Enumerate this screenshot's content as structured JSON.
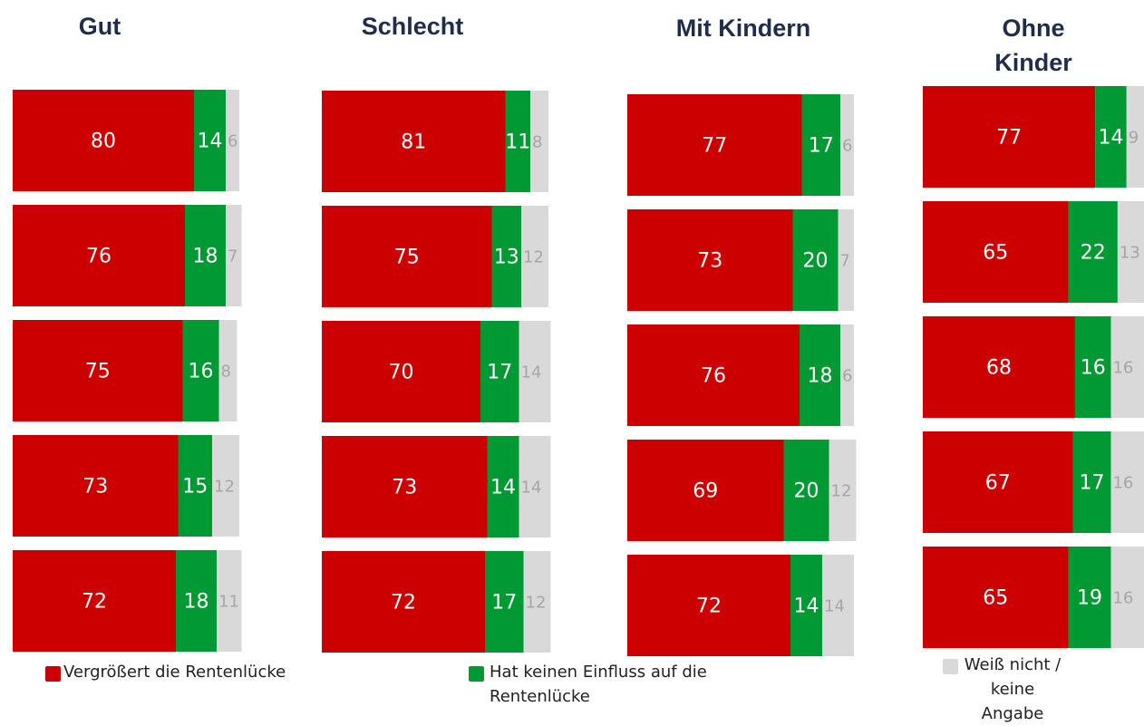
{
  "chart_data": {
    "type": "bar",
    "orientation": "horizontal",
    "stacked": true,
    "titles": [
      "Gut",
      "Schlecht",
      "Mit Kindern",
      "Ohne Kinder"
    ],
    "categories": [
      null,
      null,
      null,
      null,
      null
    ],
    "series": [
      {
        "name": "Vergrößert die Rentenlücke",
        "color": "#cc0000",
        "label_color": "#ffffff",
        "values": [
          [
            80,
            76,
            75,
            73,
            72
          ],
          [
            81,
            75,
            70,
            73,
            72
          ],
          [
            77,
            73,
            76,
            69,
            72
          ],
          [
            77,
            65,
            68,
            67,
            65
          ]
        ]
      },
      {
        "name": "Hat keinen Einfluss auf die Rentenlücke",
        "color": "#009933",
        "label_color": "#ffffff",
        "values": [
          [
            14,
            18,
            16,
            15,
            18
          ],
          [
            11,
            13,
            17,
            14,
            17
          ],
          [
            17,
            20,
            18,
            20,
            14
          ],
          [
            14,
            22,
            16,
            17,
            19
          ]
        ]
      },
      {
        "name": "Weiß nicht / keine Angabe",
        "color": "#d9d9d9",
        "label_color": "#a6a6a6",
        "values": [
          [
            6,
            7,
            8,
            12,
            11
          ],
          [
            8,
            12,
            14,
            14,
            12
          ],
          [
            6,
            7,
            6,
            12,
            14
          ],
          [
            9,
            13,
            16,
            16,
            16
          ]
        ]
      }
    ]
  }
}
